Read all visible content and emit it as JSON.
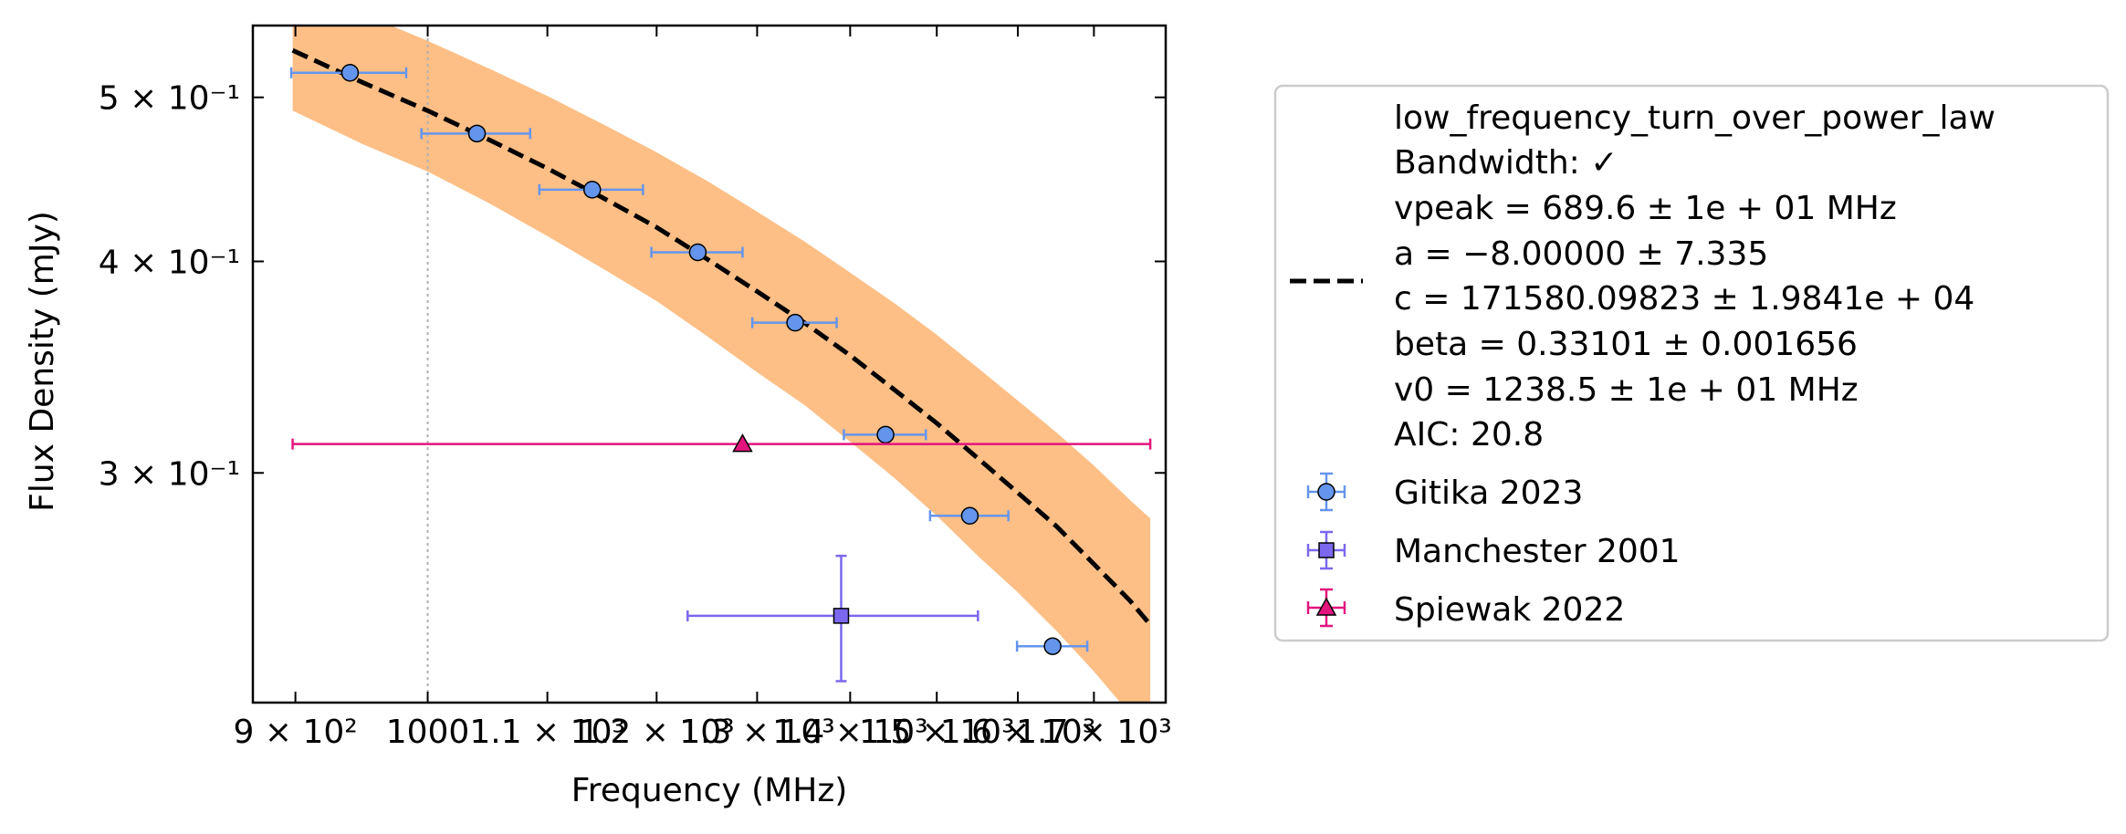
{
  "chart_data": {
    "type": "scatter",
    "title": "",
    "xlabel": "Frequency (MHz)",
    "ylabel": "Flux Density (mJy)",
    "xscale": "log",
    "yscale": "log",
    "xlim": [
      870,
      1800
    ],
    "ylim": [
      0.2195,
      0.5513
    ],
    "x_ticks": [
      {
        "value": 900,
        "label": "9 × 10²"
      },
      {
        "value": 1000,
        "label": "1000"
      },
      {
        "value": 1100,
        "label": "1.1 × 10³"
      },
      {
        "value": 1200,
        "label": "1.2 × 10³"
      },
      {
        "value": 1300,
        "label": "1.3 × 10³"
      },
      {
        "value": 1400,
        "label": "1.4 × 10³"
      },
      {
        "value": 1500,
        "label": "1.5 × 10³"
      },
      {
        "value": 1600,
        "label": "1.6 × 10³"
      },
      {
        "value": 1700,
        "label": "1.7 × 10³"
      }
    ],
    "y_ticks": [
      {
        "value": 0.3,
        "label": "3 × 10⁻¹"
      },
      {
        "value": 0.4,
        "label": "4 × 10⁻¹"
      },
      {
        "value": 0.5,
        "label": "5 × 10⁻¹"
      }
    ],
    "vline_x": 1000,
    "fit": {
      "legend_lines": [
        "low_frequency_turn_over_power_law",
        "Bandwidth: ✓",
        "vpeak = 689.6 ± 1e + 01 MHz",
        "a = −8.00000 ± 7.335",
        "c = 171580.09823 ± 1.9841e + 04",
        "beta = 0.33101 ± 0.001656",
        "v0 = 1238.5 ± 1e + 01 MHz",
        "AIC: 20.8"
      ],
      "color": "#000000",
      "band_color": "#FDBF86",
      "x": [
        898,
        950,
        1000,
        1050,
        1100,
        1150,
        1200,
        1250,
        1300,
        1350,
        1400,
        1450,
        1500,
        1550,
        1600,
        1650,
        1700,
        1750,
        1778
      ],
      "y": [
        0.533,
        0.51,
        0.491,
        0.472,
        0.454,
        0.436,
        0.419,
        0.401,
        0.384,
        0.368,
        0.352,
        0.336,
        0.321,
        0.306,
        0.292,
        0.279,
        0.265,
        0.252,
        0.244
      ],
      "band_low": [
        0.491,
        0.469,
        0.452,
        0.433,
        0.414,
        0.396,
        0.379,
        0.361,
        0.344,
        0.329,
        0.313,
        0.298,
        0.283,
        0.268,
        0.255,
        0.242,
        0.229,
        0.216,
        0.209
      ],
      "band_high": [
        0.583,
        0.56,
        0.54,
        0.52,
        0.501,
        0.482,
        0.464,
        0.446,
        0.428,
        0.411,
        0.394,
        0.378,
        0.362,
        0.346,
        0.331,
        0.317,
        0.303,
        0.289,
        0.282
      ]
    },
    "series": [
      {
        "name": "Gitika 2023",
        "marker": "circle",
        "color": "#6495ED",
        "points": [
          {
            "x": 940,
            "y": 0.517,
            "xerr": [
              43,
              43
            ],
            "yerr": [
              0,
              0
            ]
          },
          {
            "x": 1040,
            "y": 0.476,
            "xerr": [
              45,
              45
            ],
            "yerr": [
              0,
              0
            ]
          },
          {
            "x": 1140,
            "y": 0.441,
            "xerr": [
              47,
              47
            ],
            "yerr": [
              0,
              0
            ]
          },
          {
            "x": 1240,
            "y": 0.405,
            "xerr": [
              45,
              45
            ],
            "yerr": [
              0,
              0
            ]
          },
          {
            "x": 1340,
            "y": 0.368,
            "xerr": [
              45,
              45
            ],
            "yerr": [
              0,
              0
            ]
          },
          {
            "x": 1440,
            "y": 0.316,
            "xerr": [
              47,
              47
            ],
            "yerr": [
              0,
              0
            ]
          },
          {
            "x": 1540,
            "y": 0.283,
            "xerr": [
              48,
              48
            ],
            "yerr": [
              0,
              0
            ]
          },
          {
            "x": 1645,
            "y": 0.237,
            "xerr": [
              46,
              46
            ],
            "yerr": [
              0,
              0
            ]
          }
        ]
      },
      {
        "name": "Manchester 2001",
        "marker": "square",
        "color": "#7B68EE",
        "points": [
          {
            "x": 1390,
            "y": 0.247,
            "xerr": [
              160,
              160
            ],
            "yerr": [
              0.021,
              0.021
            ]
          }
        ]
      },
      {
        "name": "Spiewak 2022",
        "marker": "triangle",
        "color": "#E3157D",
        "points": [
          {
            "x": 1285,
            "y": 0.312,
            "xerr": [
              387,
              493
            ],
            "yerr": [
              0,
              0
            ]
          }
        ]
      }
    ]
  }
}
